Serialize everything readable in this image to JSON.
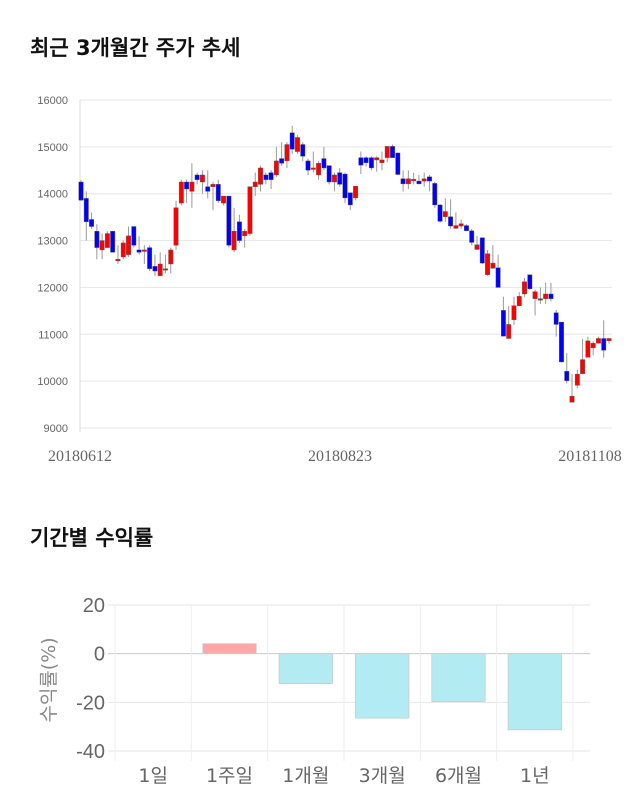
{
  "sections": {
    "price_title": "최근 3개월간 주가 추세",
    "return_title": "기간별 수익률"
  },
  "chart_data": [
    {
      "type": "candlestick",
      "title": "최근 3개월간 주가 추세",
      "ylim": [
        9000,
        16000
      ],
      "yticks": [
        9000,
        10000,
        11000,
        12000,
        13000,
        14000,
        15000,
        16000
      ],
      "xtick_labels": [
        "20180612",
        "20180823",
        "20181108"
      ],
      "grid": true,
      "colors": {
        "up": "#ff0000",
        "down": "#0000ff",
        "wick": "#999999"
      },
      "ohlc": [
        [
          14250,
          14290,
          13850,
          13860
        ],
        [
          13900,
          14050,
          13000,
          13400
        ],
        [
          13450,
          13600,
          13250,
          13300
        ],
        [
          13200,
          13350,
          12600,
          12850
        ],
        [
          12800,
          13150,
          12600,
          13000
        ],
        [
          12850,
          13200,
          12850,
          13150
        ],
        [
          13200,
          13200,
          12750,
          12750
        ],
        [
          12600,
          12900,
          12500,
          12600
        ],
        [
          12650,
          13000,
          12600,
          12950
        ],
        [
          12700,
          13300,
          12650,
          13100
        ],
        [
          13300,
          13300,
          12850,
          12900
        ],
        [
          12800,
          13100,
          12700,
          12750
        ],
        [
          12800,
          12900,
          12500,
          12800
        ],
        [
          12850,
          12900,
          12350,
          12400
        ],
        [
          12450,
          12700,
          12250,
          12350
        ],
        [
          12250,
          12750,
          12250,
          12500
        ],
        [
          12400,
          12700,
          12300,
          12400
        ],
        [
          12500,
          12850,
          12300,
          12800
        ],
        [
          12900,
          13850,
          12800,
          13700
        ],
        [
          13800,
          14300,
          13750,
          14250
        ],
        [
          14250,
          14300,
          13800,
          14100
        ],
        [
          14050,
          14650,
          13700,
          14250
        ],
        [
          14400,
          14450,
          14200,
          14300
        ],
        [
          14250,
          14500,
          14000,
          14400
        ],
        [
          14150,
          14500,
          13900,
          14050
        ],
        [
          14150,
          14250,
          13650,
          14200
        ],
        [
          14200,
          14300,
          13800,
          13850
        ],
        [
          13800,
          13950,
          13750,
          13950
        ],
        [
          13950,
          13950,
          12850,
          12900
        ],
        [
          12800,
          13700,
          12750,
          13200
        ],
        [
          13400,
          13550,
          12950,
          13000
        ],
        [
          13100,
          13250,
          12850,
          13200
        ],
        [
          13150,
          14150,
          13100,
          14150
        ],
        [
          14150,
          14450,
          13950,
          14250
        ],
        [
          14200,
          14600,
          14050,
          14550
        ],
        [
          14400,
          14450,
          14200,
          14300
        ],
        [
          14450,
          14500,
          14100,
          14300
        ],
        [
          14400,
          15000,
          14350,
          14700
        ],
        [
          14750,
          15100,
          14600,
          14650
        ],
        [
          14700,
          15100,
          14550,
          15050
        ],
        [
          15300,
          15450,
          14850,
          14950
        ],
        [
          14900,
          15250,
          14850,
          15200
        ],
        [
          15050,
          15100,
          14700,
          14800
        ],
        [
          14700,
          14750,
          14400,
          14500
        ],
        [
          14550,
          14900,
          14450,
          14550
        ],
        [
          14400,
          14700,
          14300,
          14650
        ],
        [
          14750,
          15000,
          14500,
          14550
        ],
        [
          14600,
          14600,
          14200,
          14250
        ],
        [
          14250,
          14450,
          14050,
          14400
        ],
        [
          14450,
          14550,
          14150,
          14200
        ],
        [
          14420,
          14450,
          13800,
          13910
        ],
        [
          14020,
          14020,
          13650,
          13760
        ],
        [
          13910,
          14160,
          13860,
          14160
        ],
        [
          14770,
          14900,
          14420,
          14610
        ],
        [
          14770,
          14800,
          14580,
          14660
        ],
        [
          14770,
          14800,
          14500,
          14550
        ],
        [
          14720,
          14800,
          14470,
          14770
        ],
        [
          14660,
          14900,
          14500,
          14720
        ],
        [
          14770,
          15010,
          14670,
          15010
        ],
        [
          15010,
          15050,
          14770,
          14770
        ],
        [
          14870,
          14870,
          14400,
          14410
        ],
        [
          14320,
          14500,
          14050,
          14210
        ],
        [
          14210,
          14500,
          14100,
          14320
        ],
        [
          14310,
          14450,
          14200,
          14310
        ],
        [
          14270,
          14400,
          14200,
          14210
        ],
        [
          14270,
          14450,
          14150,
          14320
        ],
        [
          14360,
          14400,
          14050,
          14270
        ],
        [
          14220,
          14250,
          13700,
          13760
        ],
        [
          13760,
          13780,
          13380,
          13410
        ],
        [
          13510,
          13900,
          13400,
          13620
        ],
        [
          13510,
          13880,
          13250,
          13310
        ],
        [
          13260,
          13600,
          13250,
          13320
        ],
        [
          13310,
          13450,
          13250,
          13360
        ],
        [
          13320,
          13350,
          13200,
          13210
        ],
        [
          13210,
          13250,
          12900,
          12960
        ],
        [
          12810,
          13100,
          12800,
          12910
        ],
        [
          13060,
          13060,
          12500,
          12520
        ],
        [
          12270,
          12800,
          12250,
          12720
        ],
        [
          12410,
          12900,
          12400,
          12520
        ],
        [
          12420,
          12700,
          12000,
          12000
        ],
        [
          11510,
          11800,
          10960,
          10960
        ],
        [
          10910,
          11600,
          10910,
          11210
        ],
        [
          11310,
          11800,
          11200,
          11610
        ],
        [
          11610,
          11900,
          11600,
          11810
        ],
        [
          11860,
          12200,
          11800,
          12120
        ],
        [
          12270,
          12270,
          11950,
          11970
        ],
        [
          11760,
          11950,
          11400,
          11910
        ],
        [
          11760,
          12000,
          11650,
          11760
        ],
        [
          11760,
          12100,
          11650,
          11860
        ],
        [
          11860,
          12100,
          11700,
          11760
        ],
        [
          11460,
          11520,
          10950,
          11210
        ],
        [
          11260,
          11260,
          10400,
          10410
        ],
        [
          10210,
          10600,
          9950,
          10010
        ],
        [
          9550,
          10150,
          9550,
          9680
        ],
        [
          9910,
          10250,
          9850,
          10150
        ],
        [
          10160,
          10900,
          10150,
          10460
        ],
        [
          10510,
          10950,
          10510,
          10860
        ],
        [
          10710,
          10850,
          10550,
          10810
        ],
        [
          10810,
          10950,
          10800,
          10910
        ],
        [
          10910,
          11300,
          10500,
          10660
        ],
        [
          10860,
          10920,
          10800,
          10910
        ]
      ]
    },
    {
      "type": "bar",
      "title": "기간별 수익률",
      "ylabel": "수익률(%)",
      "ylim": [
        -40,
        20
      ],
      "yticks": [
        20,
        0,
        -20,
        -40
      ],
      "categories": [
        "1일",
        "1주일",
        "1개월",
        "3개월",
        "6개월",
        "1년"
      ],
      "values": [
        0,
        4.1,
        -12.3,
        -26.5,
        -19.7,
        -31.3
      ],
      "grid": true,
      "colors": {
        "positive": "#ffa6a6",
        "negative": "#b2ebf2"
      }
    }
  ]
}
